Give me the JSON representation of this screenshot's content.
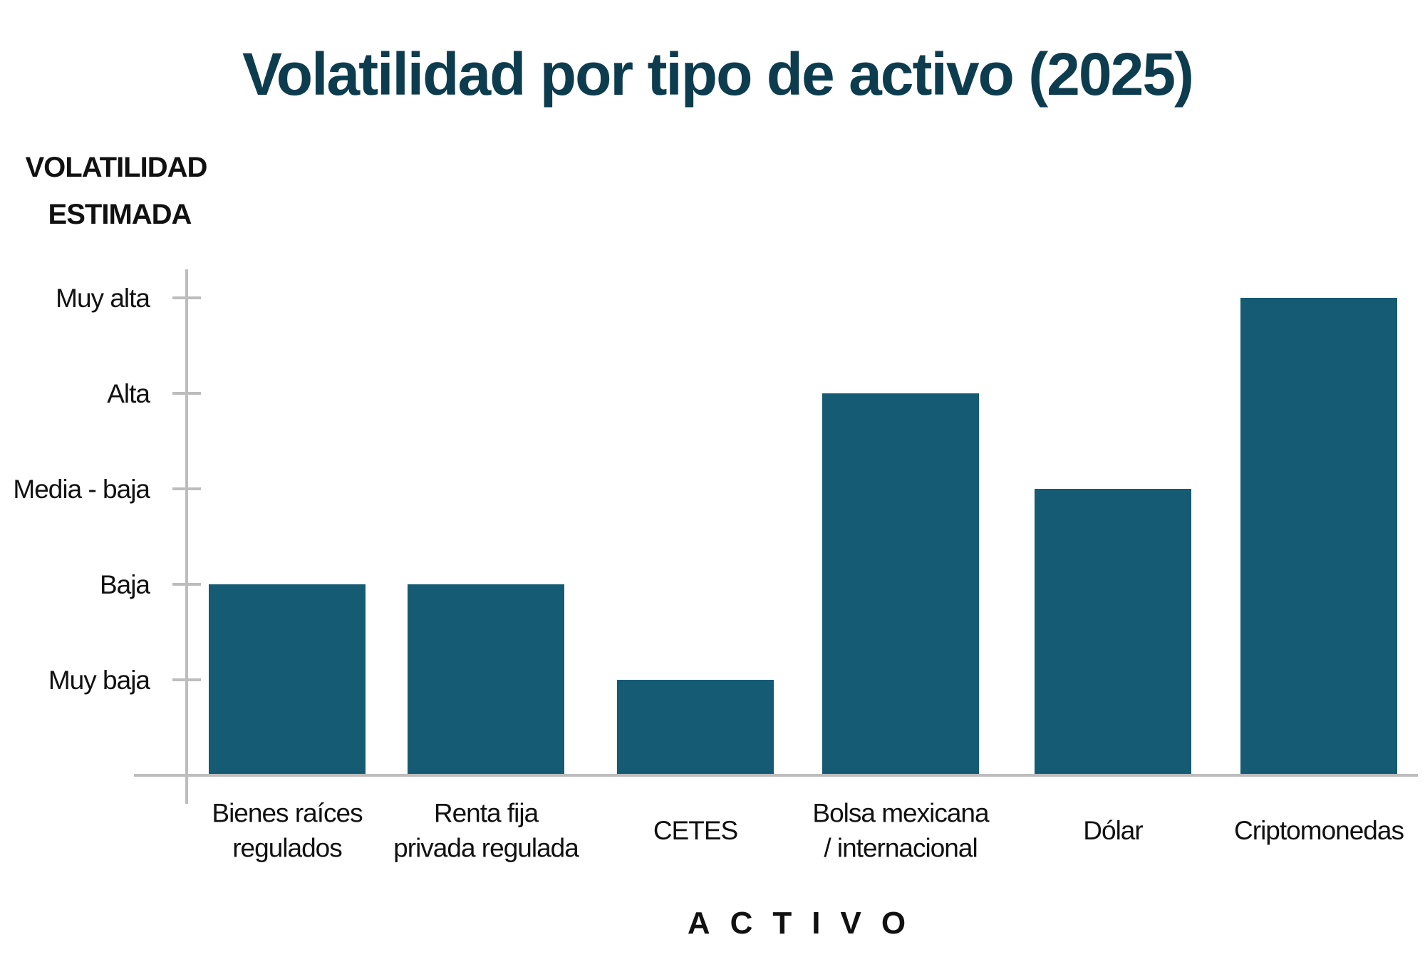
{
  "chart_data": {
    "type": "bar",
    "title": "Volatilidad por tipo de activo (2025)",
    "ylabel": [
      "VOLATILIDAD",
      "ESTIMADA"
    ],
    "xlabel": "ACTIVO",
    "y_levels": [
      "Muy baja",
      "Baja",
      "Media - baja",
      "Alta",
      "Muy alta"
    ],
    "ylim": [
      0,
      5.6
    ],
    "categories": [
      [
        "Bienes raíces",
        "regulados"
      ],
      [
        "Renta fija",
        "privada regulada"
      ],
      [
        "CETES"
      ],
      [
        "Bolsa mexicana",
        "/ internacional"
      ],
      [
        "Dólar"
      ],
      [
        "Criptomonedas"
      ]
    ],
    "values": [
      2,
      2,
      1,
      4,
      3,
      5
    ],
    "grid": false,
    "legend": "none",
    "colors": {
      "bar": "#155b73",
      "title": "#0d3c4f",
      "axis": "#bdbdbd",
      "text": "#111111"
    }
  }
}
